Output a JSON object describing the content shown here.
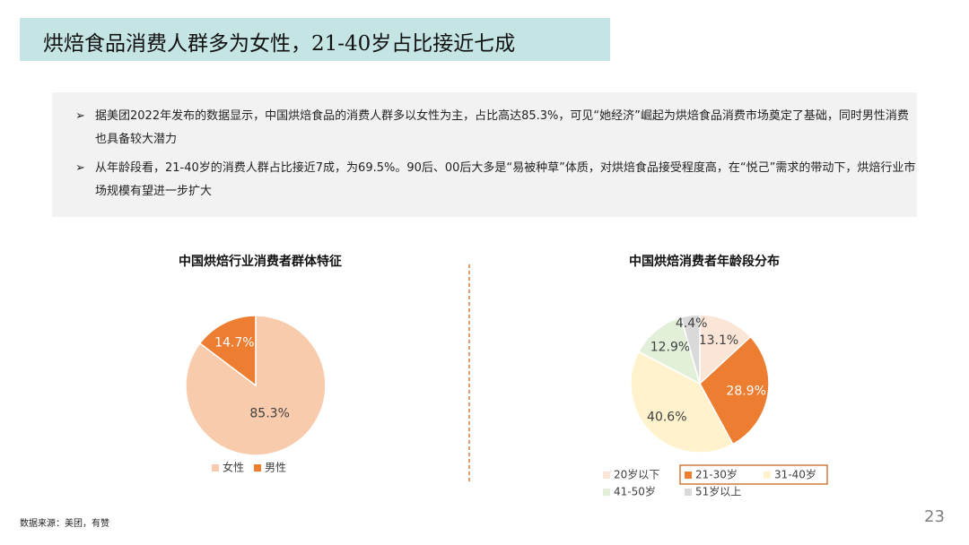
{
  "title": "烘焙食品消费人群多为女性，21-40岁占比接近七成",
  "bullets": [
    "据美团2022年发布的数据显示，中国烘焙食品的消费人群多以女性为主，占比高达85.3%，可见“她经济”崛起为烘焙食品消费市场奠定了基础，同时男性消费也具备较大潜力",
    "从年龄段看，21-40岁的消费人群占比接近7成，为69.5%。90后、00后大多是“易被种草”体质，对烘焙食品接受程度高，在“悦己”需求的带动下，烘焙行业市场规模有望进一步扩大"
  ],
  "chart_data": [
    {
      "type": "pie",
      "title": "中国烘焙行业消费者群体特征",
      "categories": [
        "女性",
        "男性"
      ],
      "values": [
        85.3,
        14.7
      ],
      "value_labels": [
        "85.3%",
        "14.7%"
      ],
      "colors": [
        "#f8cbad",
        "#ed7d31"
      ]
    },
    {
      "type": "pie",
      "title": "中国烘焙消费者年龄段分布",
      "categories": [
        "20岁以下",
        "21-30岁",
        "31-40岁",
        "41-50岁",
        "51岁以上"
      ],
      "values": [
        13.1,
        28.9,
        40.6,
        12.9,
        4.4
      ],
      "value_labels": [
        "13.1%",
        "28.9%",
        "40.6%",
        "12.9%",
        "4.4%"
      ],
      "colors": [
        "#fbe5d6",
        "#ed7d31",
        "#fff2cc",
        "#e2f0d9",
        "#d9d9d9"
      ]
    }
  ],
  "source": "数据来源：美团，有赞",
  "page_number": "23"
}
